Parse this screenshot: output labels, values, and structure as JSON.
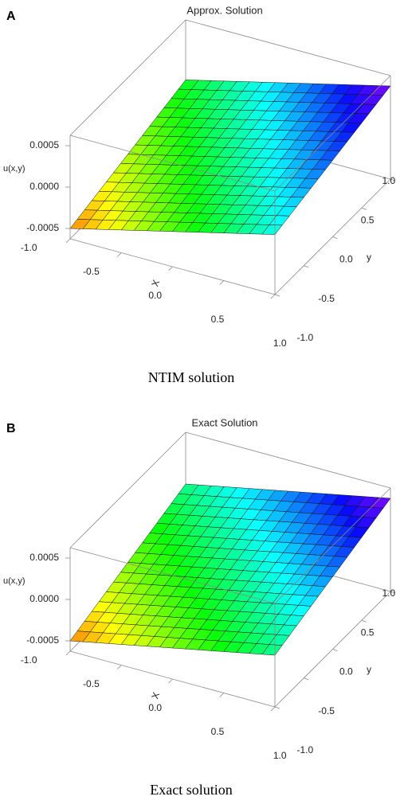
{
  "chart_data": [
    {
      "type": "surface3d",
      "panel_label": "A",
      "title": "Approx. Solution",
      "caption": "NTIM solution",
      "zlabel": "u(x,y)",
      "xlabel": "X",
      "ylabel": "y",
      "xlim": [
        -1,
        1
      ],
      "ylim": [
        -1,
        1
      ],
      "zlim": [
        -0.000625,
        0.000625
      ],
      "xticks": [
        {
          "value": -1,
          "label": "-1.0"
        },
        {
          "value": -0.5,
          "label": "-0.5"
        },
        {
          "value": 0,
          "label": "0.0"
        },
        {
          "value": 0.5,
          "label": "0.5"
        },
        {
          "value": 1,
          "label": "1.0"
        }
      ],
      "yticks": [
        {
          "value": -1,
          "label": "-1.0"
        },
        {
          "value": -0.5,
          "label": "-0.5"
        },
        {
          "value": 0,
          "label": "0.0"
        },
        {
          "value": 0.5,
          "label": "0.5"
        },
        {
          "value": 1,
          "label": "1.0"
        }
      ],
      "zticks": [
        {
          "value": 0.0005,
          "label": "0.0005"
        },
        {
          "value": 0,
          "label": "0.0000"
        },
        {
          "value": -0.0005,
          "label": "-0.0005"
        }
      ],
      "x": [
        -1,
        -0.5,
        0,
        0.5,
        1
      ],
      "y": [
        -1,
        -0.5,
        0,
        0.5,
        1
      ],
      "z": [
        [
          -0.0005,
          -0.00035,
          -0.0002,
          -5e-05,
          0.0001
        ],
        [
          -0.0004,
          -0.00025,
          -0.0001,
          5e-05,
          0.0002
        ],
        [
          -0.0003,
          -0.00015,
          0,
          0.00015,
          0.0003
        ],
        [
          -0.0002,
          -5e-05,
          0.0001,
          0.00025,
          0.0004
        ],
        [
          -0.0001,
          5e-05,
          0.0002,
          0.00035,
          0.0005
        ]
      ]
    },
    {
      "type": "surface3d",
      "panel_label": "B",
      "title": "Exact Solution",
      "caption": "Exact solution",
      "zlabel": "u(x,y)",
      "xlabel": "X",
      "ylabel": "y",
      "xlim": [
        -1,
        1
      ],
      "ylim": [
        -1,
        1
      ],
      "zlim": [
        -0.000625,
        0.000625
      ],
      "xticks": [
        {
          "value": -1,
          "label": "-1.0"
        },
        {
          "value": -0.5,
          "label": "-0.5"
        },
        {
          "value": 0,
          "label": "0.0"
        },
        {
          "value": 0.5,
          "label": "0.5"
        },
        {
          "value": 1,
          "label": "1.0"
        }
      ],
      "yticks": [
        {
          "value": -1,
          "label": "-1.0"
        },
        {
          "value": -0.5,
          "label": "-0.5"
        },
        {
          "value": 0,
          "label": "0.0"
        },
        {
          "value": 0.5,
          "label": "0.5"
        },
        {
          "value": 1,
          "label": "1.0"
        }
      ],
      "zticks": [
        {
          "value": 0.0005,
          "label": "0.0005"
        },
        {
          "value": 0,
          "label": "0.0000"
        },
        {
          "value": -0.0005,
          "label": "-0.0005"
        }
      ],
      "x": [
        -1,
        -0.5,
        0,
        0.5,
        1
      ],
      "y": [
        -1,
        -0.5,
        0,
        0.5,
        1
      ],
      "z": [
        [
          -0.0005,
          -0.000375,
          -0.00025,
          -0.000125,
          0
        ],
        [
          -0.000375,
          -0.00025,
          -0.000125,
          0,
          0.000125
        ],
        [
          -0.00025,
          -0.000125,
          0,
          0.000125,
          0.00025
        ],
        [
          -0.000125,
          0,
          0.000125,
          0.00025,
          0.000375
        ],
        [
          0,
          0.000125,
          0.00025,
          0.000375,
          0.0005
        ]
      ]
    }
  ]
}
